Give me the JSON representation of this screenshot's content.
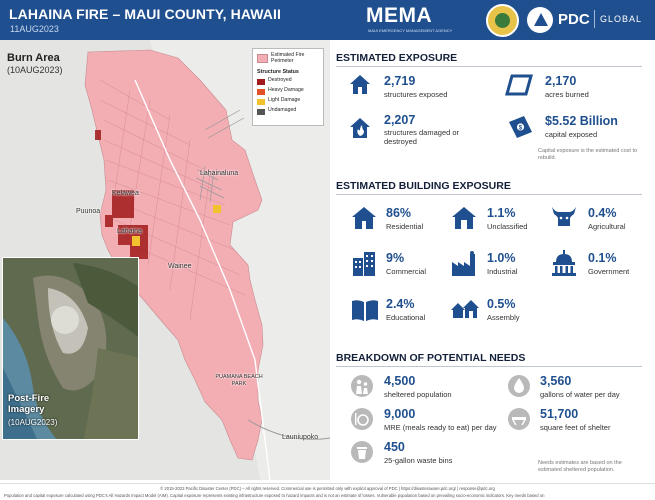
{
  "header": {
    "title": "LAHAINA FIRE – MAUI COUNTY, HAWAII",
    "date": "11AUG2023",
    "mema_logo": "MEMA",
    "mema_subtitle": "MAUI EMERGENCY MANAGEMENT AGENCY",
    "pdc_label": "PDC",
    "pdc_global": "GLOBAL"
  },
  "map": {
    "title": "Burn Area",
    "date": "(10AUG2023)",
    "legend": {
      "perimeter_label": "Estimated Fire Perimeter",
      "status_heading": "Structure Status",
      "items": [
        {
          "label": "Destroyed",
          "color": "#a11a1a"
        },
        {
          "label": "Heavy Damage",
          "color": "#e0512b"
        },
        {
          "label": "Light Damage",
          "color": "#f2c12e"
        },
        {
          "label": "Undamaged",
          "color": "#555555"
        }
      ],
      "perimeter_color": "#f3aeb4"
    },
    "places": {
      "lahainaluna": "Lahainaluna",
      "kelawea": "Kelawea",
      "puunoa": "Puunoa",
      "lahaina": "Lahaina",
      "wainee": "Wainee",
      "puamana": "PUAMANA BEACH PARK",
      "launiupoko": "Launiupoko"
    },
    "inset": {
      "title": "Post-Fire Imagery",
      "date": "(10AUG2023)"
    }
  },
  "exposure": {
    "title": "ESTIMATED EXPOSURE",
    "items": [
      {
        "value": "2,719",
        "label": "structures exposed",
        "icon": "house-icon"
      },
      {
        "value": "2,170",
        "label": "acres burned",
        "icon": "area-icon"
      },
      {
        "value": "2,207",
        "label": "structures damaged or destroyed",
        "icon": "house-fire-icon"
      },
      {
        "value": "$5.52 Billion",
        "label": "capital exposed",
        "icon": "money-icon"
      }
    ],
    "note": "Capital exposure is the estimated cost to rebuild."
  },
  "building": {
    "title": "ESTIMATED BUILDING EXPOSURE",
    "items": [
      {
        "value": "86%",
        "label": "Residential",
        "icon": "residential-icon"
      },
      {
        "value": "1.1%",
        "label": "Unclassified",
        "icon": "unclassified-icon"
      },
      {
        "value": "0.4%",
        "label": "Agricultural",
        "icon": "agricultural-icon"
      },
      {
        "value": "9%",
        "label": "Commercial",
        "icon": "commercial-icon"
      },
      {
        "value": "1.0%",
        "label": "Industrial",
        "icon": "industrial-icon"
      },
      {
        "value": "0.1%",
        "label": "Government",
        "icon": "government-icon"
      },
      {
        "value": "2.4%",
        "label": "Educational",
        "icon": "educational-icon"
      },
      {
        "value": "0.5%",
        "label": "Assembly",
        "icon": "assembly-icon"
      }
    ]
  },
  "needs": {
    "title": "BREAKDOWN OF POTENTIAL NEEDS",
    "items": [
      {
        "value": "4,500",
        "label": "sheltered population",
        "icon": "people-icon"
      },
      {
        "value": "3,560",
        "label": "gallons of water per day",
        "icon": "water-drop-icon"
      },
      {
        "value": "9,000",
        "label": "MRE (meals ready to eat) per day",
        "icon": "meal-icon"
      },
      {
        "value": "51,700",
        "label": "square feet of shelter",
        "icon": "cot-icon"
      },
      {
        "value": "450",
        "label": "25-gallon waste bins",
        "icon": "waste-bin-icon"
      }
    ],
    "note": "Needs estimates are based on the estimated sheltered population."
  },
  "footer": {
    "line1": "© 2015-2023 Pacific Disaster Center (PDC) – All rights reserved. Commercial use is permitted only with explicit approval of PDC | https://disasteraware.pdc.org/ | response@pdc.org",
    "line2": "Population and capital exposure calculated using PDC's All Hazards Impact Model (AIM). Capital exposure represents existing infrastructure exposed to hazard impacts and is not an estimate of losses. Vulnerable population based on prevailing socio-economic indicators. Key needs based on"
  },
  "colors": {
    "brand_blue": "#1f4f8e",
    "burn_pink": "#f3aeb4",
    "text_dark": "#14203a"
  }
}
